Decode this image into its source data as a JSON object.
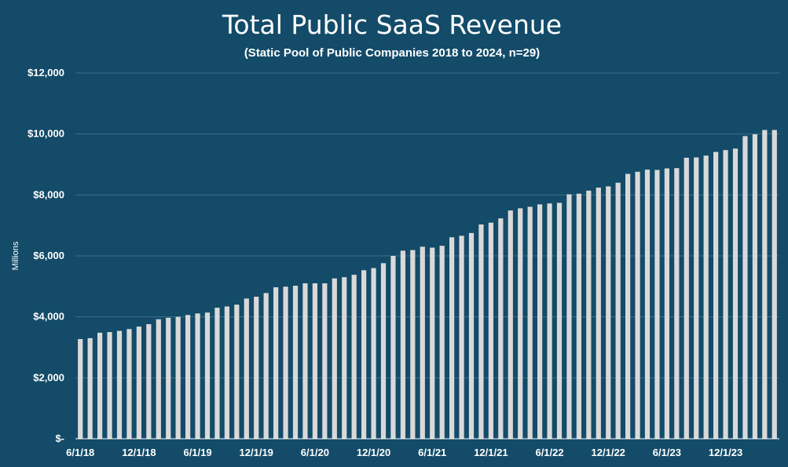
{
  "chart_data": {
    "type": "bar",
    "title": "Total Public SaaS Revenue",
    "subtitle": "(Static Pool of Public Companies 2018 to 2024, n=29)",
    "xlabel": "",
    "ylabel": "Millions",
    "ylim": [
      0,
      12000
    ],
    "y_ticks": [
      "$-",
      "$2,000",
      "$4,000",
      "$6,000",
      "$8,000",
      "$10,000",
      "$12,000"
    ],
    "x_tick_labels": [
      "6/1/18",
      "12/1/18",
      "6/1/19",
      "12/1/19",
      "6/1/20",
      "12/1/20",
      "6/1/21",
      "12/1/21",
      "6/1/22",
      "12/1/22",
      "6/1/23",
      "12/1/23"
    ],
    "grid": true,
    "bar_color": "#d9d9d9",
    "categories": [
      "6/1/18",
      "7/1/18",
      "8/1/18",
      "9/1/18",
      "10/1/18",
      "11/1/18",
      "12/1/18",
      "1/1/19",
      "2/1/19",
      "3/1/19",
      "4/1/19",
      "5/1/19",
      "6/1/19",
      "7/1/19",
      "8/1/19",
      "9/1/19",
      "10/1/19",
      "11/1/19",
      "12/1/19",
      "1/1/20",
      "2/1/20",
      "3/1/20",
      "4/1/20",
      "5/1/20",
      "6/1/20",
      "7/1/20",
      "8/1/20",
      "9/1/20",
      "10/1/20",
      "11/1/20",
      "12/1/20",
      "1/1/21",
      "2/1/21",
      "3/1/21",
      "4/1/21",
      "5/1/21",
      "6/1/21",
      "7/1/21",
      "8/1/21",
      "9/1/21",
      "10/1/21",
      "11/1/21",
      "12/1/21",
      "1/1/22",
      "2/1/22",
      "3/1/22",
      "4/1/22",
      "5/1/22",
      "6/1/22",
      "7/1/22",
      "8/1/22",
      "9/1/22",
      "10/1/22",
      "11/1/22",
      "12/1/22",
      "1/1/23",
      "2/1/23",
      "3/1/23",
      "4/1/23",
      "5/1/23",
      "6/1/23",
      "7/1/23",
      "8/1/23",
      "9/1/23",
      "10/1/23",
      "11/1/23",
      "12/1/23",
      "1/1/24",
      "2/1/24",
      "3/1/24",
      "4/1/24",
      "5/1/24"
    ],
    "values": [
      3270,
      3300,
      3480,
      3500,
      3540,
      3600,
      3680,
      3760,
      3920,
      3970,
      4000,
      4060,
      4110,
      4140,
      4300,
      4340,
      4400,
      4600,
      4660,
      4780,
      4970,
      4990,
      5020,
      5100,
      5100,
      5100,
      5260,
      5300,
      5380,
      5530,
      5600,
      5760,
      6000,
      6170,
      6190,
      6300,
      6270,
      6330,
      6610,
      6660,
      6750,
      7030,
      7090,
      7230,
      7490,
      7560,
      7610,
      7690,
      7720,
      7740,
      8020,
      8040,
      8140,
      8240,
      8280,
      8400,
      8690,
      8760,
      8830,
      8820,
      8870,
      8880,
      9220,
      9230,
      9290,
      9410,
      9470,
      9520,
      9930,
      9990,
      10130,
      10130
    ]
  }
}
